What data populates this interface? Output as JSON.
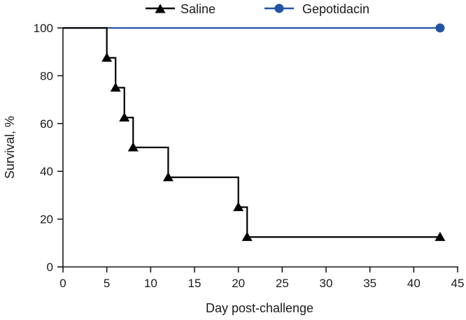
{
  "chart_data": {
    "type": "line",
    "style": "step",
    "xlabel": "Day post-challenge",
    "ylabel": "Survival, %",
    "xlim": [
      0,
      45
    ],
    "ylim": [
      0,
      100
    ],
    "xticks": [
      0,
      5,
      10,
      15,
      20,
      25,
      30,
      35,
      40,
      45
    ],
    "yticks": [
      0,
      20,
      40,
      60,
      80,
      100
    ],
    "legend_position": "top-center",
    "series": [
      {
        "name": "Saline",
        "color": "#000000",
        "marker": "triangle",
        "steps": [
          [
            0,
            100
          ],
          [
            5,
            87.5
          ],
          [
            6,
            75
          ],
          [
            7,
            62.5
          ],
          [
            8,
            50
          ],
          [
            12,
            37.5
          ],
          [
            20,
            25
          ],
          [
            21,
            12.5
          ]
        ],
        "end_x": 43,
        "markers": [
          [
            5,
            87.5
          ],
          [
            6,
            75
          ],
          [
            7,
            62.5
          ],
          [
            8,
            50
          ],
          [
            12,
            37.5
          ],
          [
            20,
            25
          ],
          [
            21,
            12.5
          ],
          [
            43,
            12.5
          ]
        ]
      },
      {
        "name": "Gepotidacin",
        "color": "#2453a3",
        "marker": "circle",
        "steps": [
          [
            0,
            100
          ]
        ],
        "end_x": 43,
        "markers": [
          [
            43,
            100
          ]
        ]
      }
    ]
  }
}
